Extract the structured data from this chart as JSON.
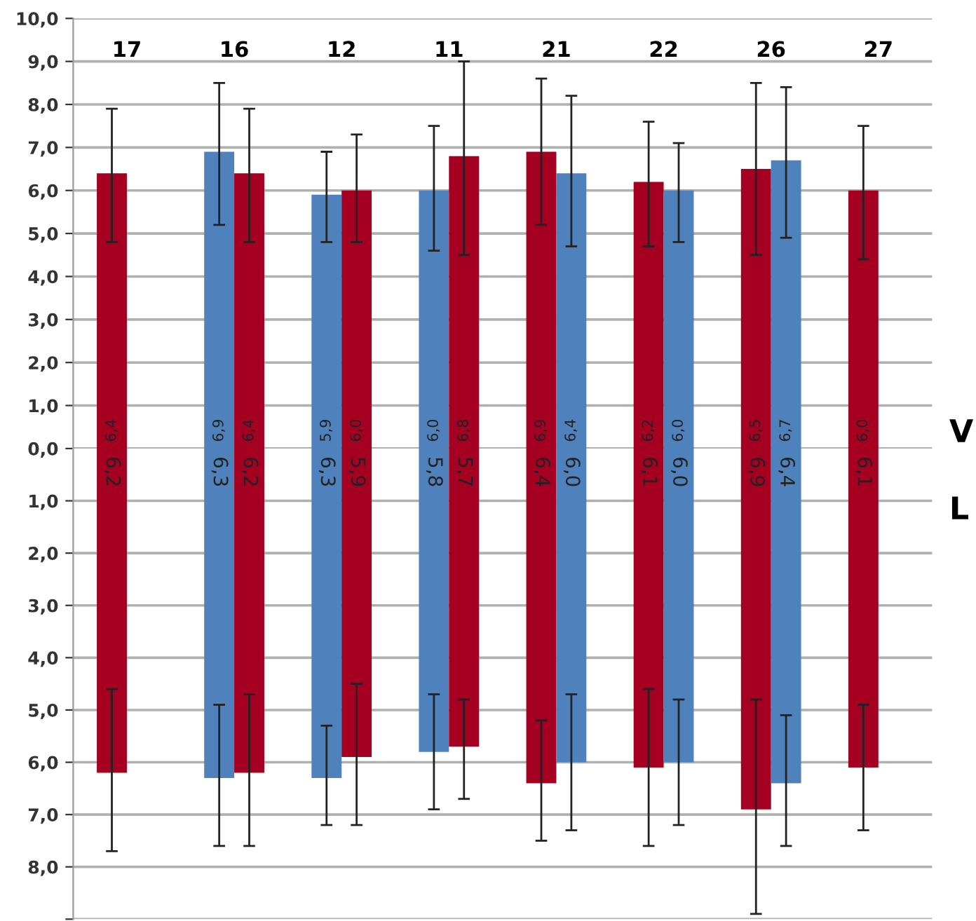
{
  "chart_data": [
    {
      "type": "bar",
      "categories": [
        "17",
        "16",
        "12",
        "11",
        "21",
        "22",
        "26",
        "27"
      ],
      "series": [
        {
          "colors": [
            "#a50021",
            "#4f81bd",
            "#4f81bd",
            "#4f81bd",
            "#a50021",
            "#a50021",
            "#a50021",
            "#a50021"
          ],
          "values": [
            6.4,
            6.9,
            5.9,
            6.0,
            6.9,
            6.2,
            6.5,
            6.0
          ],
          "value_labels": [
            "6,4",
            "6,9",
            "5,9",
            "6,0",
            "6,9",
            "6,2",
            "6,5",
            "6,0"
          ],
          "errors": [
            [
              4.8,
              7.9
            ],
            [
              5.2,
              8.5
            ],
            [
              4.8,
              6.9
            ],
            [
              4.6,
              7.5
            ],
            [
              5.2,
              8.6
            ],
            [
              4.7,
              7.6
            ],
            [
              4.5,
              8.5
            ],
            [
              4.4,
              7.5
            ]
          ]
        },
        {
          "colors": [
            null,
            "#a50021",
            "#a50021",
            "#a50021",
            "#4f81bd",
            "#4f81bd",
            "#4f81bd",
            null
          ],
          "values": [
            null,
            6.4,
            6.0,
            6.8,
            6.4,
            6.0,
            6.7,
            null
          ],
          "value_labels": [
            null,
            "6,4",
            "6,0",
            "6,8",
            "6,4",
            "6,0",
            "6,7",
            null
          ],
          "errors": [
            null,
            [
              4.8,
              7.9
            ],
            [
              4.8,
              7.3
            ],
            [
              4.5,
              9.0
            ],
            [
              4.7,
              8.2
            ],
            [
              4.8,
              7.1
            ],
            [
              4.9,
              8.4
            ],
            null
          ]
        }
      ],
      "ylim": [
        0,
        10
      ],
      "yticks": [
        {
          "value": 0,
          "label": "0,0"
        },
        {
          "value": 1,
          "label": "1,0"
        },
        {
          "value": 2,
          "label": "2,0"
        },
        {
          "value": 3,
          "label": "3,0"
        },
        {
          "value": 4,
          "label": "4,0"
        },
        {
          "value": 5,
          "label": "5,0"
        },
        {
          "value": 6,
          "label": "6,0"
        },
        {
          "value": 7,
          "label": "7,0"
        },
        {
          "value": 8,
          "label": "8,0"
        },
        {
          "value": 9,
          "label": "9,0"
        },
        {
          "value": 10,
          "label": "10,0"
        }
      ],
      "grid": "y",
      "annotations": [
        "V"
      ]
    },
    {
      "type": "bar",
      "categories": [
        null,
        null,
        null,
        null,
        null,
        null,
        null,
        null
      ],
      "series": [
        {
          "colors": [
            "#a50021",
            "#4f81bd",
            "#4f81bd",
            "#4f81bd",
            "#a50021",
            "#a50021",
            "#a50021",
            "#a50021"
          ],
          "values": [
            6.2,
            6.3,
            6.3,
            5.8,
            6.4,
            6.1,
            6.9,
            6.1
          ],
          "value_labels": [
            "6,2",
            "6,3",
            "6,3",
            "5,8",
            "6,4",
            "6,1",
            "6,9",
            "6,1"
          ],
          "errors": [
            [
              4.6,
              7.7
            ],
            [
              4.9,
              7.6
            ],
            [
              5.3,
              7.2
            ],
            [
              4.7,
              6.9
            ],
            [
              5.2,
              7.5
            ],
            [
              4.6,
              7.6
            ],
            [
              4.8,
              8.9
            ],
            [
              4.9,
              7.3
            ]
          ]
        },
        {
          "colors": [
            null,
            "#a50021",
            "#a50021",
            "#a50021",
            "#4f81bd",
            "#4f81bd",
            "#4f81bd",
            null
          ],
          "values": [
            null,
            6.2,
            5.9,
            5.7,
            6.0,
            6.0,
            6.4,
            null
          ],
          "value_labels": [
            null,
            "6,2",
            "5,9",
            "5,7",
            "6,0",
            "6,0",
            "6,4",
            null
          ],
          "errors": [
            null,
            [
              4.7,
              7.6
            ],
            [
              4.5,
              7.2
            ],
            [
              4.8,
              6.7
            ],
            [
              4.7,
              7.3
            ],
            [
              4.8,
              7.2
            ],
            [
              5.1,
              7.6
            ],
            null
          ]
        }
      ],
      "ylim": [
        9,
        0
      ],
      "yticks": [
        {
          "value": 1,
          "label": "1,0"
        },
        {
          "value": 2,
          "label": "2,0"
        },
        {
          "value": 3,
          "label": "3,0"
        },
        {
          "value": 4,
          "label": "4,0"
        },
        {
          "value": 5,
          "label": "5,0"
        },
        {
          "value": 6,
          "label": "6,0"
        },
        {
          "value": 7,
          "label": "7,0"
        },
        {
          "value": 8,
          "label": "8,0"
        },
        {
          "value": 9,
          "label": null
        }
      ],
      "grid": "y",
      "tick_labels": "y",
      "annotations": [
        "L"
      ]
    }
  ]
}
